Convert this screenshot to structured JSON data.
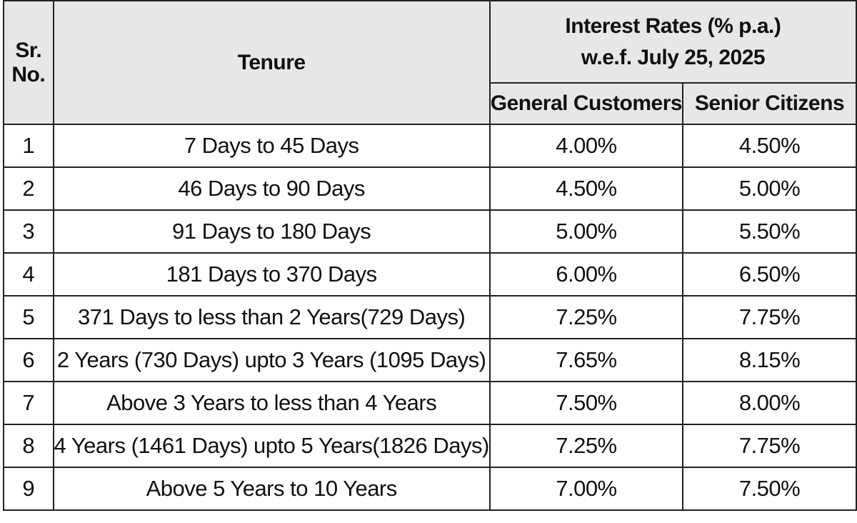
{
  "header": {
    "sr_line1": "Sr.",
    "sr_line2": "No.",
    "tenure": "Tenure",
    "rates_line1": "Interest Rates (% p.a.)",
    "rates_line2": "w.e.f. July 25, 2025",
    "general": "General Customers",
    "senior": "Senior Citizens"
  },
  "rows": [
    {
      "sr": "1",
      "tenure": "7 Days to 45 Days",
      "general": "4.00%",
      "senior": "4.50%"
    },
    {
      "sr": "2",
      "tenure": "46 Days to 90 Days",
      "general": "4.50%",
      "senior": "5.00%"
    },
    {
      "sr": "3",
      "tenure": "91 Days to 180 Days",
      "general": "5.00%",
      "senior": "5.50%"
    },
    {
      "sr": "4",
      "tenure": "181 Days to 370 Days",
      "general": "6.00%",
      "senior": "6.50%"
    },
    {
      "sr": "5",
      "tenure": "371 Days to less than 2 Years(729 Days)",
      "general": "7.25%",
      "senior": "7.75%"
    },
    {
      "sr": "6",
      "tenure": "2 Years (730 Days) upto 3 Years (1095 Days)",
      "general": "7.65%",
      "senior": "8.15%"
    },
    {
      "sr": "7",
      "tenure": "Above 3 Years to less than 4 Years",
      "general": "7.50%",
      "senior": "8.00%"
    },
    {
      "sr": "8",
      "tenure": "4 Years (1461 Days) upto 5 Years(1826 Days)",
      "general": "7.25%",
      "senior": "7.75%"
    },
    {
      "sr": "9",
      "tenure": "Above 5 Years to 10 Years",
      "general": "7.00%",
      "senior": "7.50%"
    }
  ]
}
